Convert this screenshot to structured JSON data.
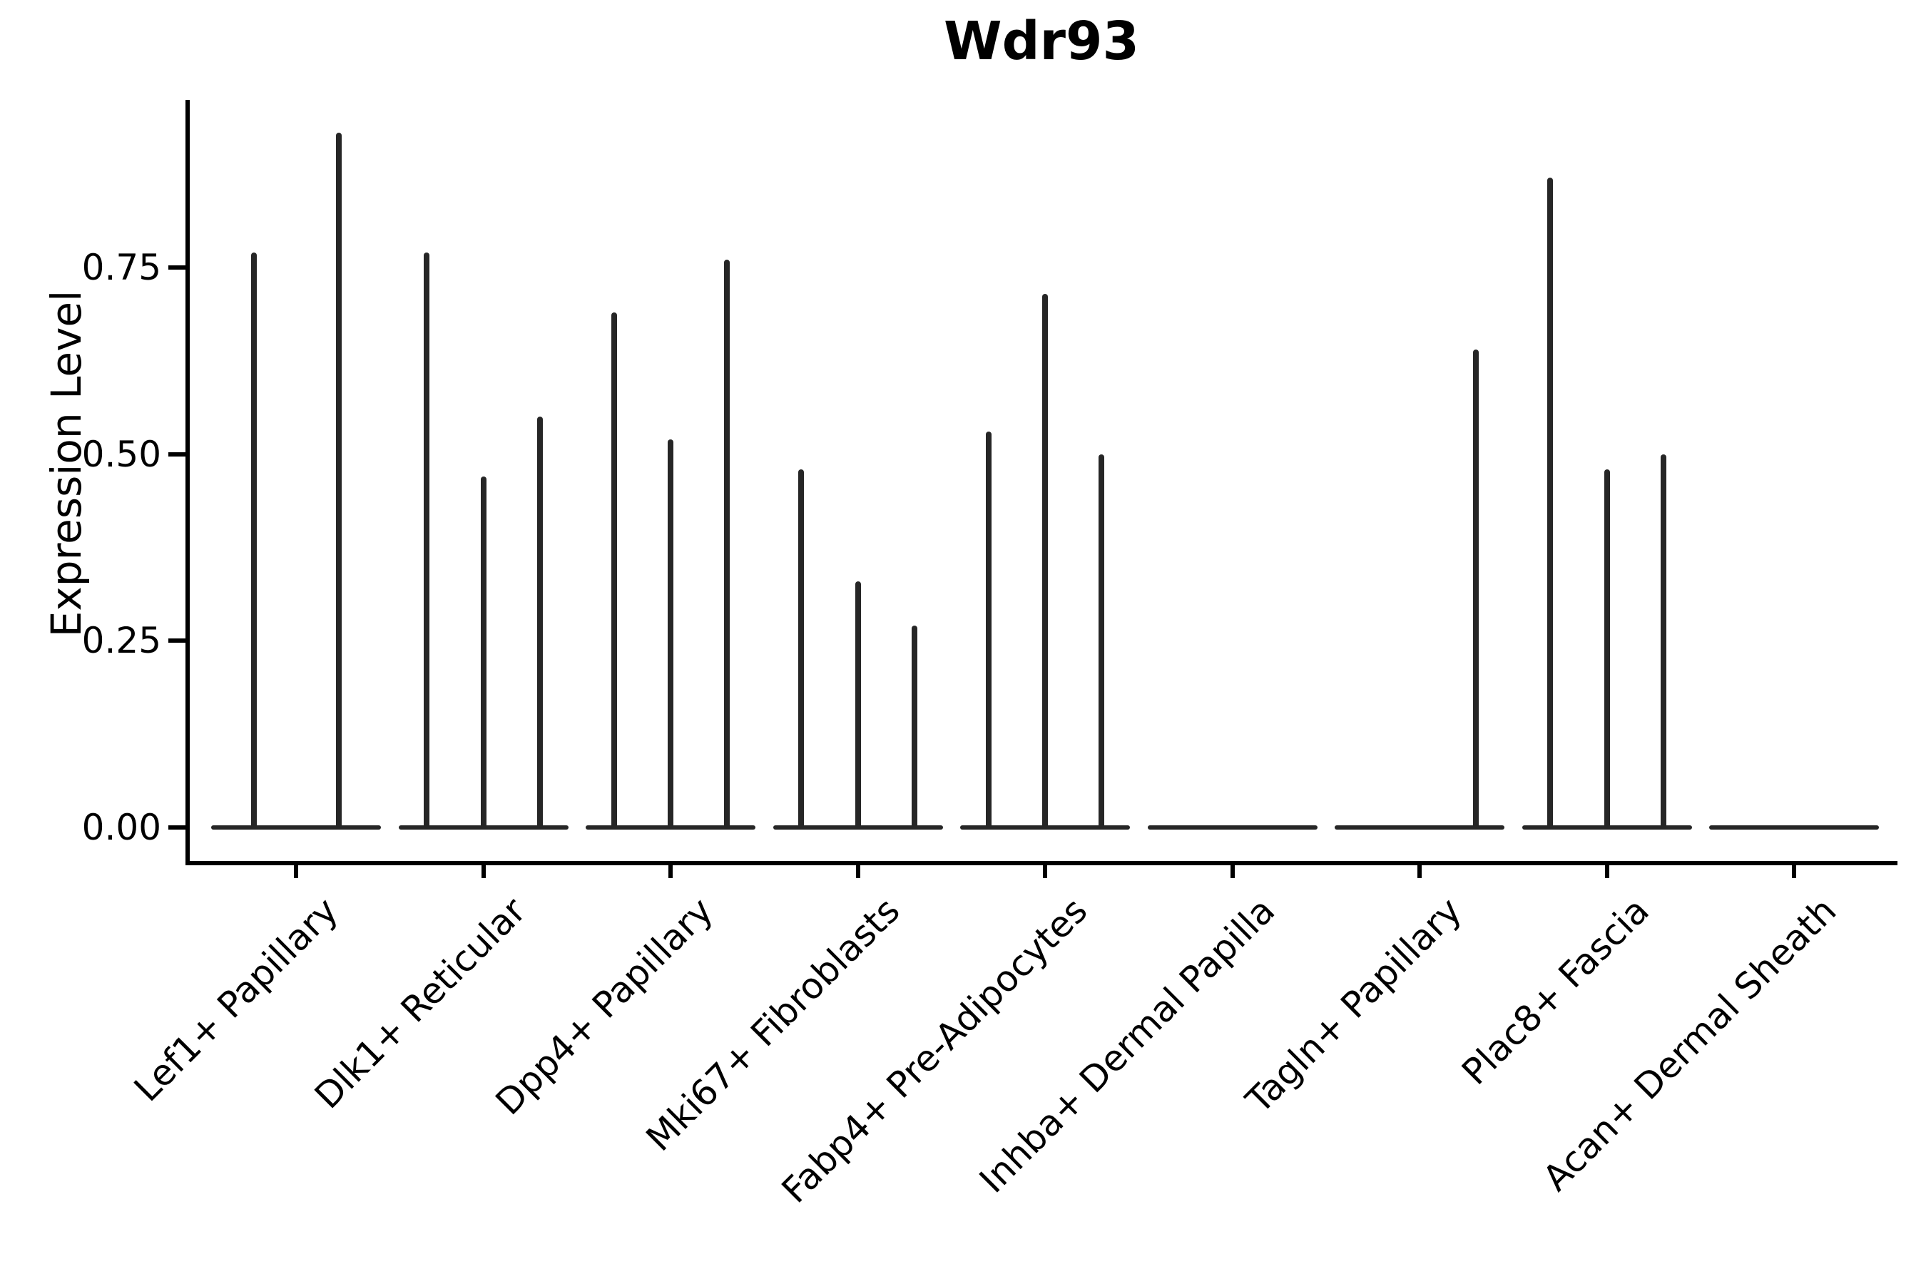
{
  "title": "Wdr93",
  "chart_data": {
    "type": "violin",
    "title": "Wdr93",
    "xlabel": "",
    "ylabel": "Expression Level",
    "ylim": [
      0,
      0.975
    ],
    "yticks": [
      0,
      0.25,
      0.5,
      0.75
    ],
    "ytick_labels": [
      "0.00",
      "0.25",
      "0.50",
      "0.75"
    ],
    "grid": false,
    "legend": "none",
    "categories": [
      "Lef1+ Papillary",
      "Dlk1+ Reticular",
      "Dpp4+ Papillary",
      "Mki67+ Fibroblasts",
      "Fabp4+ Pre-Adipocytes",
      "Inhba+ Dermal Papilla",
      "Tagln+ Papillary",
      "Plac8+ Fascia",
      "Acan+ Dermal Sheath"
    ],
    "series": [
      {
        "category": "Lef1+ Papillary",
        "violin_max_values": [
          0.77,
          0.93
        ]
      },
      {
        "category": "Dlk1+ Reticular",
        "violin_max_values": [
          0.77,
          0.47,
          0.55
        ]
      },
      {
        "category": "Dpp4+ Papillary",
        "violin_max_values": [
          0.69,
          0.52,
          0.76
        ]
      },
      {
        "category": "Mki67+ Fibroblasts",
        "violin_max_values": [
          0.48,
          0.33,
          0.27
        ]
      },
      {
        "category": "Fabp4+ Pre-Adipocytes",
        "violin_max_values": [
          0.53,
          0.715,
          0.5
        ]
      },
      {
        "category": "Inhba+ Dermal Papilla",
        "violin_max_values": [
          0,
          0,
          0
        ]
      },
      {
        "category": "Tagln+ Papillary",
        "violin_max_values": [
          0,
          0,
          0.64
        ]
      },
      {
        "category": "Plac8+ Fascia",
        "violin_max_values": [
          0.87,
          0.48,
          0.5
        ]
      },
      {
        "category": "Acan+ Dermal Sheath",
        "violin_max_values": [
          0,
          0,
          0
        ]
      }
    ],
    "colors": {
      "violin": "#262626",
      "axis": "#000000",
      "text": "#000000",
      "background": "#ffffff"
    }
  }
}
